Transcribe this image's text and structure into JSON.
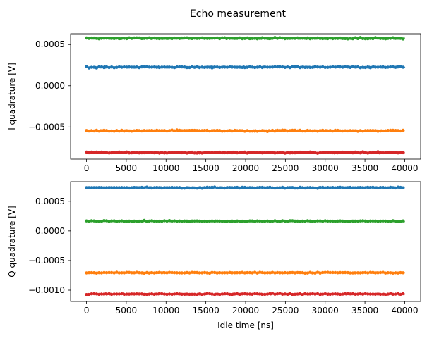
{
  "figure": {
    "title": "Echo measurement"
  },
  "chart_data": [
    {
      "type": "scatter",
      "title": "",
      "xlabel": "",
      "ylabel": "I quadrature [V]",
      "x_range": [
        0,
        40000
      ],
      "x_ticks": [
        0,
        5000,
        10000,
        15000,
        20000,
        25000,
        30000,
        35000,
        40000
      ],
      "x_tick_labels": [
        "0",
        "5000",
        "10000",
        "15000",
        "20000",
        "25000",
        "30000",
        "35000",
        "40000"
      ],
      "xlim": [
        -2000,
        42000
      ],
      "ylim": [
        -0.00089,
        0.00063
      ],
      "y_ticks": [
        0.0005,
        0.0,
        -0.0005
      ],
      "y_tick_labels": [
        "0.0005",
        "0.0000",
        "−0.0005"
      ],
      "grid": false,
      "series": [
        {
          "color": "#2ca02c",
          "mean": 0.000575,
          "noise": 8e-06
        },
        {
          "color": "#1f77b4",
          "mean": 0.000225,
          "noise": 8e-06
        },
        {
          "color": "#ff7f0e",
          "mean": -0.000545,
          "noise": 8e-06
        },
        {
          "color": "#d62728",
          "mean": -0.00081,
          "noise": 9e-06
        }
      ]
    },
    {
      "type": "scatter",
      "title": "",
      "xlabel": "Idle time [ns]",
      "ylabel": "Q quadrature [V]",
      "x_range": [
        0,
        40000
      ],
      "x_ticks": [
        0,
        5000,
        10000,
        15000,
        20000,
        25000,
        30000,
        35000,
        40000
      ],
      "x_tick_labels": [
        "0",
        "5000",
        "10000",
        "15000",
        "20000",
        "25000",
        "30000",
        "35000",
        "40000"
      ],
      "xlim": [
        -2000,
        42000
      ],
      "ylim": [
        -0.00119,
        0.00083
      ],
      "y_ticks": [
        0.0005,
        0.0,
        -0.0005,
        -0.001
      ],
      "y_tick_labels": [
        "0.0005",
        "0.0000",
        "−0.0005",
        "−0.0010"
      ],
      "grid": false,
      "series": [
        {
          "color": "#1f77b4",
          "mean": 0.00073,
          "noise": 9e-06
        },
        {
          "color": "#2ca02c",
          "mean": 0.000165,
          "noise": 8e-06
        },
        {
          "color": "#ff7f0e",
          "mean": -0.000705,
          "noise": 8e-06
        },
        {
          "color": "#d62728",
          "mean": -0.001065,
          "noise": 1e-05
        }
      ]
    }
  ]
}
